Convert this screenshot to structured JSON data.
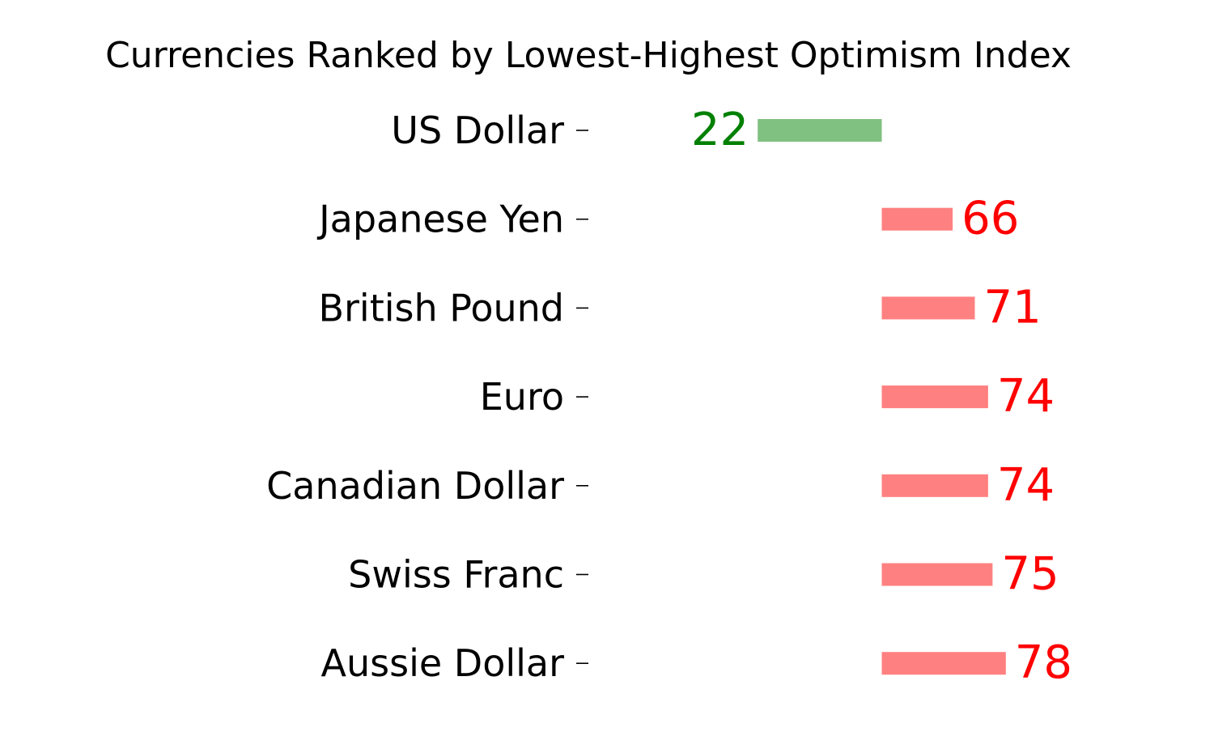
{
  "chart_data": {
    "type": "bar",
    "orientation": "horizontal",
    "title": "Currencies Ranked by Lowest-Highest Optimism Index",
    "xlabel": "",
    "ylabel": "",
    "baseline": 50,
    "xlim": [
      0,
      100
    ],
    "grid": false,
    "categories": [
      "US Dollar",
      "Japanese Yen",
      "British Pound",
      "Euro",
      "Canadian Dollar",
      "Swiss Franc",
      "Aussie Dollar"
    ],
    "values": [
      22,
      66,
      71,
      74,
      74,
      75,
      78
    ],
    "colors": {
      "below_baseline_bar": "#80c080",
      "below_baseline_label": "#008000",
      "above_baseline_bar": "#ff8080",
      "above_baseline_label": "#ff0000",
      "category_label": "#000000"
    }
  }
}
